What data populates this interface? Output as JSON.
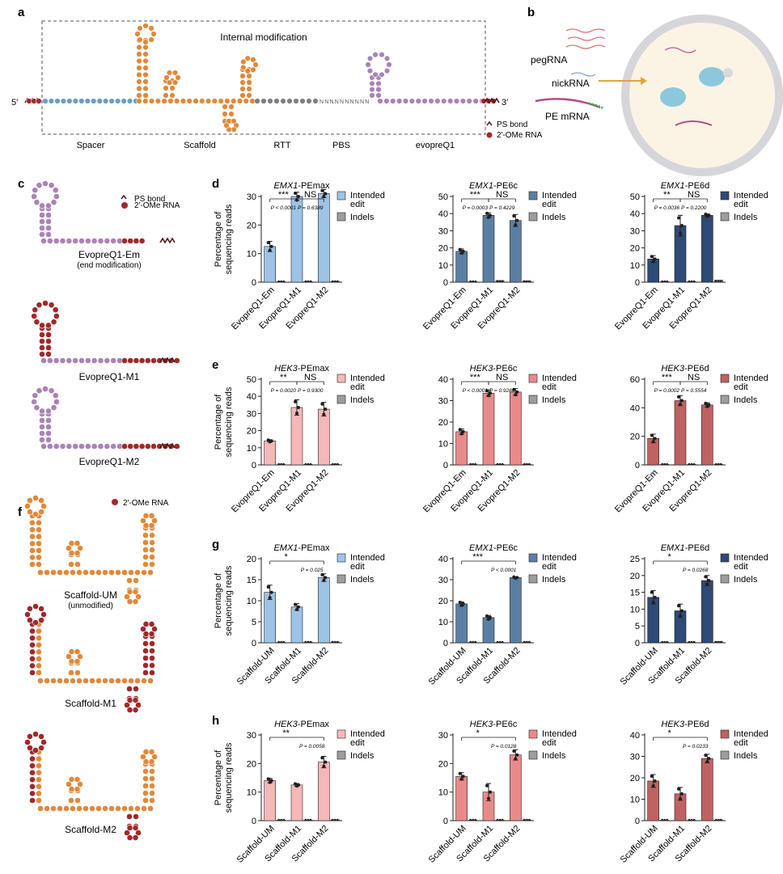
{
  "panel_labels": [
    "a",
    "b",
    "c",
    "d",
    "e",
    "f",
    "g",
    "h"
  ],
  "panel_a": {
    "internal_modification": "Internal modification",
    "five_prime": "5′",
    "three_prime": "3′",
    "segments": [
      "Spacer",
      "Scaffold",
      "RTT",
      "PBS",
      "evopreQ1"
    ],
    "rtt_bases": "NNNNNNNNNN",
    "legend_ps": "PS bond",
    "legend_ome": "2′-OMe RNA"
  },
  "panel_b": {
    "labels": [
      "pegRNA",
      "nickRNA",
      "PE mRNA"
    ]
  },
  "panel_c": {
    "legend_ps": "PS bond",
    "legend_ome": "2′-OMe RNA",
    "structures": [
      {
        "name": "EvopreQ1-Em",
        "note": "(end modification)"
      },
      {
        "name": "EvopreQ1-M1",
        "note": ""
      },
      {
        "name": "EvopreQ1-M2",
        "note": ""
      }
    ]
  },
  "panel_f": {
    "legend_ome": "2′-OMe RNA",
    "structures": [
      {
        "name": "Scaffold-UM",
        "note": "(unmodified)"
      },
      {
        "name": "Scaffold-M1",
        "note": ""
      },
      {
        "name": "Scaffold-M2",
        "note": ""
      }
    ]
  },
  "colors": {
    "spacer": "#6a9ec6",
    "scaffold": "#e0893a",
    "rtt": "#7f7f7f",
    "evopreq1": "#a983b7",
    "ome": "#a0282a",
    "ps": "#4a1a1a",
    "indels": "#9d9d9d"
  },
  "chart_data": [
    {
      "id": "d1",
      "type": "bar",
      "title_gene": "EMX1",
      "title_suffix": "-PEmax",
      "ylabel": "Percentage of sequencing reads",
      "categories": [
        "EvopreQ1-Em",
        "EvopreQ1-M1",
        "EvopreQ1-M2"
      ],
      "ylim": [
        0,
        30
      ],
      "yticks": [
        0,
        10,
        20,
        30
      ],
      "legend": [
        "Intended edit",
        "Indels"
      ],
      "color": "#9dc3e6",
      "series": [
        {
          "name": "Intended edit",
          "values": [
            12.5,
            30,
            31
          ],
          "errors": [
            1.8,
            1.5,
            1.4
          ]
        },
        {
          "name": "Indels",
          "values": [
            0.2,
            0.3,
            0.3
          ],
          "errors": [
            0,
            0,
            0
          ]
        }
      ],
      "comparisons": [
        {
          "from": 0,
          "to": 1,
          "stars": "***",
          "p": "P < 0.0001"
        },
        {
          "from": 1,
          "to": 2,
          "stars": "NS",
          "p": "P = 0.6389"
        }
      ]
    },
    {
      "id": "d2",
      "type": "bar",
      "title_gene": "EMX1",
      "title_suffix": "-PE6c",
      "ylabel": "",
      "categories": [
        "EvopreQ1-Em",
        "EvopreQ1-M1",
        "EvopreQ1-M2"
      ],
      "ylim": [
        0,
        50
      ],
      "yticks": [
        0,
        10,
        20,
        30,
        40,
        50
      ],
      "legend": [
        "Intended edit",
        "Indels"
      ],
      "color": "#5a7fa3",
      "series": [
        {
          "name": "Intended edit",
          "values": [
            18,
            39,
            36
          ],
          "errors": [
            1.4,
            1.5,
            3.5
          ]
        },
        {
          "name": "Indels",
          "values": [
            0.3,
            1.0,
            0.8
          ],
          "errors": [
            0,
            0,
            0
          ]
        }
      ],
      "comparisons": [
        {
          "from": 0,
          "to": 1,
          "stars": "***",
          "p": "P = 0.0003"
        },
        {
          "from": 1,
          "to": 2,
          "stars": "NS",
          "p": "P = 0.4229"
        }
      ]
    },
    {
      "id": "d3",
      "type": "bar",
      "title_gene": "EMX1",
      "title_suffix": "-PE6d",
      "ylabel": "",
      "categories": [
        "EvopreQ1-Em",
        "EvopreQ1-M1",
        "EvopreQ1-M2"
      ],
      "ylim": [
        0,
        50
      ],
      "yticks": [
        0,
        10,
        20,
        30,
        40,
        50
      ],
      "legend": [
        "Intended edit",
        "Indels"
      ],
      "color": "#2e4a76",
      "series": [
        {
          "name": "Intended edit",
          "values": [
            13.5,
            33,
            39
          ],
          "errors": [
            2,
            6,
            0.8
          ]
        },
        {
          "name": "Indels",
          "values": [
            0.3,
            0.4,
            1.2
          ],
          "errors": [
            0,
            0,
            0
          ]
        }
      ],
      "comparisons": [
        {
          "from": 0,
          "to": 1,
          "stars": "**",
          "p": "P = 0.0036"
        },
        {
          "from": 1,
          "to": 2,
          "stars": "NS",
          "p": "P = 0.2200"
        }
      ]
    },
    {
      "id": "e1",
      "type": "bar",
      "title_gene": "HEK3",
      "title_suffix": "-PEmax",
      "ylabel": "Percentage of sequencing reads",
      "categories": [
        "EvopreQ1-Em",
        "EvopreQ1-M1",
        "EvopreQ1-M2"
      ],
      "ylim": [
        0,
        50
      ],
      "yticks": [
        0,
        10,
        20,
        30,
        40,
        50
      ],
      "legend": [
        "Intended edit",
        "Indels"
      ],
      "color": "#f4b8b8",
      "series": [
        {
          "name": "Intended edit",
          "values": [
            14,
            33.5,
            32.5
          ],
          "errors": [
            0.7,
            4.5,
            4
          ]
        },
        {
          "name": "Indels",
          "values": [
            0.2,
            0.3,
            0.3
          ],
          "errors": [
            0,
            0,
            0
          ]
        }
      ],
      "comparisons": [
        {
          "from": 0,
          "to": 1,
          "stars": "**",
          "p": "P = 0.0020"
        },
        {
          "from": 1,
          "to": 2,
          "stars": "NS",
          "p": "P = 0.9300"
        }
      ]
    },
    {
      "id": "e2",
      "type": "bar",
      "title_gene": "HEK3",
      "title_suffix": "-PE6c",
      "ylabel": "",
      "categories": [
        "EvopreQ1-Em",
        "EvopreQ1-M1",
        "EvopreQ1-M2"
      ],
      "ylim": [
        0,
        40
      ],
      "yticks": [
        0,
        10,
        20,
        30,
        40
      ],
      "legend": [
        "Intended edit",
        "Indels"
      ],
      "color": "#e98a8a",
      "series": [
        {
          "name": "Intended edit",
          "values": [
            15.5,
            33.5,
            34
          ],
          "errors": [
            1.3,
            1.5,
            1.6
          ]
        },
        {
          "name": "Indels",
          "values": [
            0.2,
            0.3,
            0.3
          ],
          "errors": [
            0,
            0,
            0
          ]
        }
      ],
      "comparisons": [
        {
          "from": 0,
          "to": 1,
          "stars": "***",
          "p": "P < 0.0001"
        },
        {
          "from": 1,
          "to": 2,
          "stars": "NS",
          "p": "P = 0.9286"
        }
      ]
    },
    {
      "id": "e3",
      "type": "bar",
      "title_gene": "HEK3",
      "title_suffix": "-PE6d",
      "ylabel": "",
      "categories": [
        "EvopreQ1-Em",
        "EvopreQ1-M1",
        "EvopreQ1-M2"
      ],
      "ylim": [
        0,
        60
      ],
      "yticks": [
        0,
        20,
        40,
        60
      ],
      "legend": [
        "Intended edit",
        "Indels"
      ],
      "color": "#c06262",
      "series": [
        {
          "name": "Intended edit",
          "values": [
            18.5,
            45,
            42
          ],
          "errors": [
            3,
            3.5,
            1.5
          ]
        },
        {
          "name": "Indels",
          "values": [
            0.3,
            0.4,
            0.4
          ],
          "errors": [
            0,
            0,
            0
          ]
        }
      ],
      "comparisons": [
        {
          "from": 0,
          "to": 1,
          "stars": "***",
          "p": "P = 0.0002"
        },
        {
          "from": 1,
          "to": 2,
          "stars": "NS",
          "p": "P = 0.5554"
        }
      ]
    },
    {
      "id": "g1",
      "type": "bar",
      "title_gene": "EMX1",
      "title_suffix": "-PEmax",
      "ylabel": "Percentage of sequencing reads",
      "categories": [
        "Scaffold-UM",
        "Scaffold-M1",
        "Scaffold-M2"
      ],
      "ylim": [
        0,
        20
      ],
      "yticks": [
        0,
        5,
        10,
        15,
        20
      ],
      "legend": [
        "Intended edit",
        "Indels"
      ],
      "color": "#9dc3e6",
      "series": [
        {
          "name": "Intended edit",
          "values": [
            12,
            8.5,
            15.5
          ],
          "errors": [
            1.7,
            0.8,
            0.9
          ]
        },
        {
          "name": "Indels",
          "values": [
            0.1,
            0.2,
            0.2
          ],
          "errors": [
            0,
            0,
            0
          ]
        }
      ],
      "comparisons": [
        {
          "from": 0,
          "to": 2,
          "stars": "*",
          "p": "P = 0.025"
        }
      ]
    },
    {
      "id": "g2",
      "type": "bar",
      "title_gene": "EMX1",
      "title_suffix": "-PE6c",
      "ylabel": "",
      "categories": [
        "Scaffold-UM",
        "Scaffold-M1",
        "Scaffold-M2"
      ],
      "ylim": [
        0,
        40
      ],
      "yticks": [
        0,
        10,
        20,
        30,
        40
      ],
      "legend": [
        "Intended edit",
        "Indels"
      ],
      "color": "#5a7fa3",
      "series": [
        {
          "name": "Intended edit",
          "values": [
            18.5,
            12,
            31
          ],
          "errors": [
            1,
            1,
            0.4
          ]
        },
        {
          "name": "Indels",
          "values": [
            0.2,
            0.2,
            0.3
          ],
          "errors": [
            0,
            0,
            0
          ]
        }
      ],
      "comparisons": [
        {
          "from": 0,
          "to": 2,
          "stars": "***",
          "p": "P < 0.0001"
        }
      ]
    },
    {
      "id": "g3",
      "type": "bar",
      "title_gene": "EMX1",
      "title_suffix": "-PE6d",
      "ylabel": "",
      "categories": [
        "Scaffold-UM",
        "Scaffold-M1",
        "Scaffold-M2"
      ],
      "ylim": [
        0,
        25
      ],
      "yticks": [
        0,
        5,
        10,
        15,
        20,
        25
      ],
      "legend": [
        "Intended edit",
        "Indels"
      ],
      "color": "#2e4a76",
      "series": [
        {
          "name": "Intended edit",
          "values": [
            13.5,
            9.5,
            18.5
          ],
          "errors": [
            2,
            2,
            1.5
          ]
        },
        {
          "name": "Indels",
          "values": [
            0.2,
            0.2,
            0.4
          ],
          "errors": [
            0,
            0,
            0
          ]
        }
      ],
      "comparisons": [
        {
          "from": 0,
          "to": 2,
          "stars": "*",
          "p": "P = 0.0268"
        }
      ]
    },
    {
      "id": "h1",
      "type": "bar",
      "title_gene": "HEK3",
      "title_suffix": "-PEmax",
      "ylabel": "Percentage of sequencing reads",
      "categories": [
        "Scaffold-UM",
        "Scaffold-M1",
        "Scaffold-M2"
      ],
      "ylim": [
        0,
        30
      ],
      "yticks": [
        0,
        10,
        20,
        30
      ],
      "legend": [
        "Intended edit",
        "Indels"
      ],
      "color": "#f4b8b8",
      "series": [
        {
          "name": "Intended edit",
          "values": [
            14,
            12.5,
            20.5
          ],
          "errors": [
            0.8,
            0.5,
            2
          ]
        },
        {
          "name": "Indels",
          "values": [
            0.2,
            0.2,
            0.3
          ],
          "errors": [
            0,
            0,
            0
          ]
        }
      ],
      "comparisons": [
        {
          "from": 0,
          "to": 2,
          "stars": "**",
          "p": "P = 0.0058"
        }
      ]
    },
    {
      "id": "h2",
      "type": "bar",
      "title_gene": "HEK3",
      "title_suffix": "-PE6c",
      "ylabel": "",
      "categories": [
        "Scaffold-UM",
        "Scaffold-M1",
        "Scaffold-M2"
      ],
      "ylim": [
        0,
        30
      ],
      "yticks": [
        0,
        10,
        20,
        30
      ],
      "legend": [
        "Intended edit",
        "Indels"
      ],
      "color": "#e98a8a",
      "series": [
        {
          "name": "Intended edit",
          "values": [
            15.5,
            10,
            23
          ],
          "errors": [
            1.3,
            3,
            1.8
          ]
        },
        {
          "name": "Indels",
          "values": [
            0.2,
            0.2,
            0.3
          ],
          "errors": [
            0,
            0,
            0
          ]
        }
      ],
      "comparisons": [
        {
          "from": 0,
          "to": 2,
          "stars": "*",
          "p": "P = 0.0128"
        }
      ]
    },
    {
      "id": "h3",
      "type": "bar",
      "title_gene": "HEK3",
      "title_suffix": "-PE6d",
      "ylabel": "",
      "categories": [
        "Scaffold-UM",
        "Scaffold-M1",
        "Scaffold-M2"
      ],
      "ylim": [
        0,
        40
      ],
      "yticks": [
        0,
        10,
        20,
        30,
        40
      ],
      "legend": [
        "Intended edit",
        "Indels"
      ],
      "color": "#c06262",
      "series": [
        {
          "name": "Intended edit",
          "values": [
            18.5,
            12.5,
            29
          ],
          "errors": [
            3,
            3,
            2
          ]
        },
        {
          "name": "Indels",
          "values": [
            0.2,
            0.2,
            0.3
          ],
          "errors": [
            0,
            0,
            0
          ]
        }
      ],
      "comparisons": [
        {
          "from": 0,
          "to": 2,
          "stars": "*",
          "p": "P = 0.0233"
        }
      ]
    }
  ]
}
